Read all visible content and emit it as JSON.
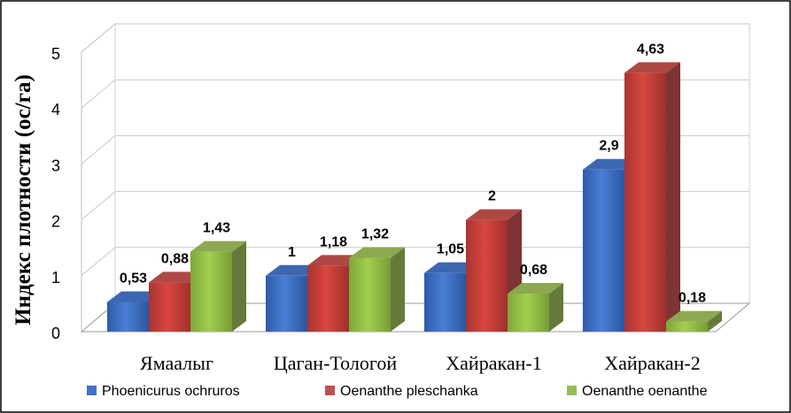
{
  "chart_data": {
    "type": "bar",
    "ylabel": "Индекс плотности (ос/га)",
    "xlabel": "",
    "title": "",
    "ylim": [
      0,
      5
    ],
    "yticks": [
      "0",
      "1",
      "2",
      "3",
      "4",
      "5"
    ],
    "categories": [
      "Ямаалыг",
      "Цаган-Тологой",
      "Хайракан-1",
      "Хайракан-2"
    ],
    "series": [
      {
        "name": "Phoenicurus ochruros",
        "color": "#4472C4",
        "values": [
          0.53,
          1,
          1.05,
          2.9
        ],
        "labels": [
          "0,53",
          "1",
          "1,05",
          "2,9"
        ]
      },
      {
        "name": "Oenanthe pleschanka",
        "color": "#C0504D",
        "values": [
          0.88,
          1.18,
          2,
          4.63
        ],
        "labels": [
          "0,88",
          "1,18",
          "2",
          "4,63"
        ]
      },
      {
        "name": "Oenanthe oenanthe",
        "color": "#9BBB59",
        "values": [
          1.43,
          1.32,
          0.68,
          0.18
        ],
        "labels": [
          "1,43",
          "1,32",
          "0,68",
          "0,18"
        ]
      }
    ],
    "legend_position": "bottom",
    "grid": true,
    "style": "3d-clustered-column"
  }
}
